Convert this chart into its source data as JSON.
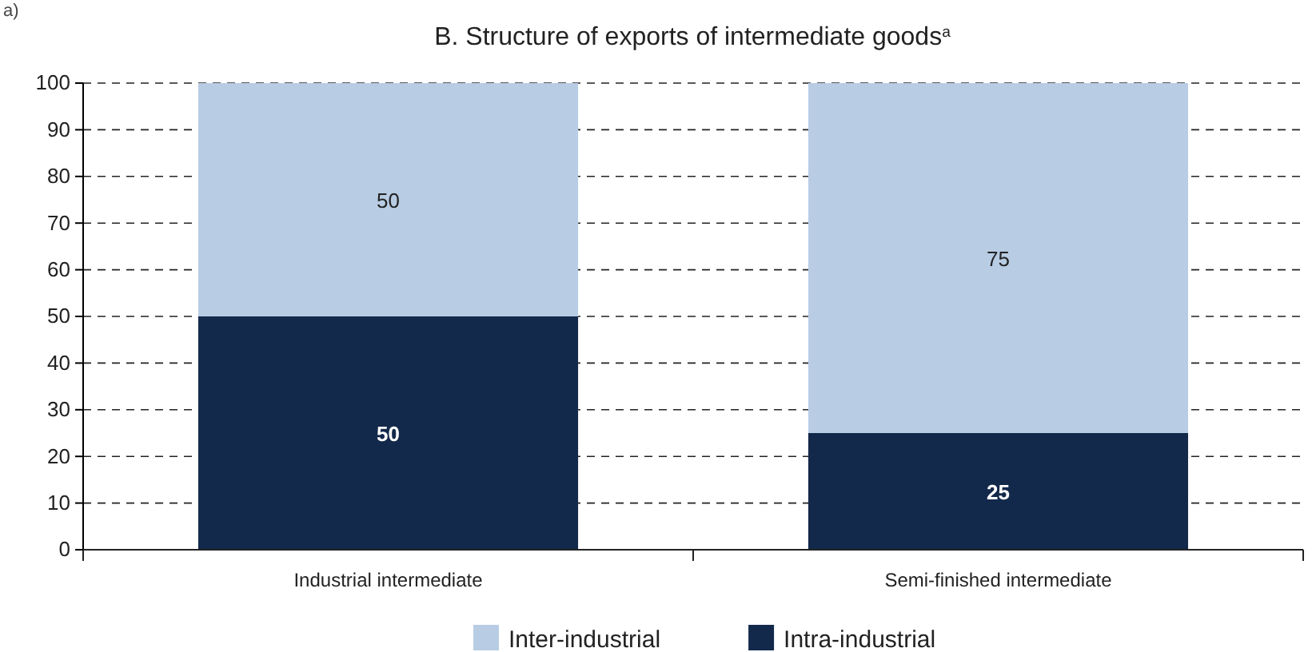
{
  "chart_data": {
    "type": "bar",
    "title": "B. Structure of exports of intermediate goods$^{a}$",
    "annotations": [
      "a)"
    ],
    "categories": [
      "Industrial intermediate",
      "Semi-finished intermediate"
    ],
    "series": [
      {
        "name": "Intra-industrial",
        "color": "#13294b",
        "values": [
          50,
          25
        ]
      },
      {
        "name": "Inter-industrial",
        "color": "#b8cce4",
        "values": [
          50,
          75
        ]
      }
    ],
    "stacked": true,
    "ylim": [
      0,
      100
    ],
    "yticks": [
      0,
      10,
      20,
      30,
      40,
      50,
      60,
      70,
      80,
      90,
      100
    ],
    "grid": "y",
    "legend": "bottom",
    "data_labels": true
  }
}
